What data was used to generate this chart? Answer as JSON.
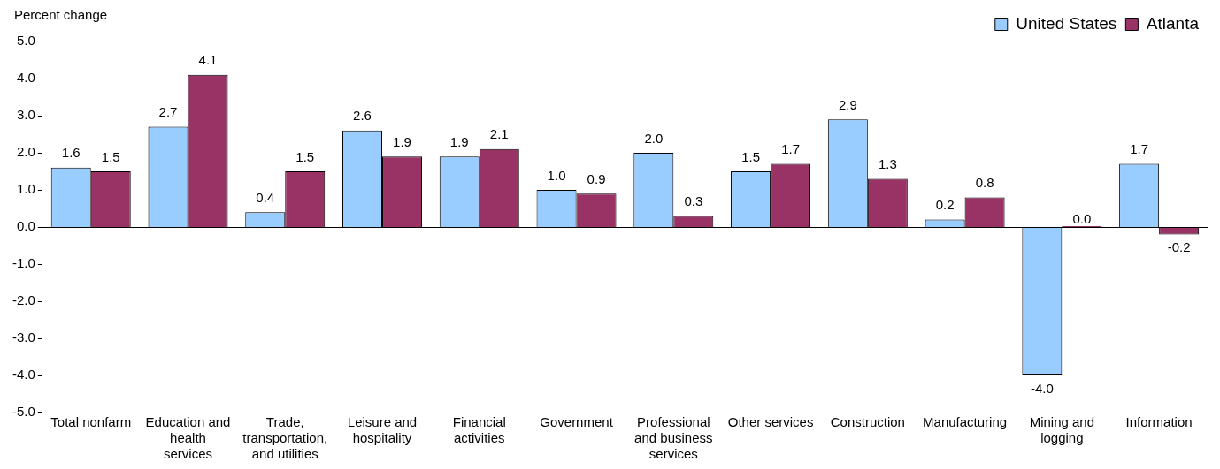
{
  "chart_data": {
    "type": "bar",
    "ylabel": "Percent change",
    "categories": [
      "Total nonfarm",
      "Education and health services",
      "Trade, transportation, and utilities",
      "Leisure and hospitality",
      "Financial activities",
      "Government",
      "Professional and business services",
      "Other services",
      "Construction",
      "Manufacturing",
      "Mining and logging",
      "Information"
    ],
    "series": [
      {
        "name": "United States",
        "color": "#99ccff",
        "values": [
          1.6,
          2.7,
          0.4,
          2.6,
          1.9,
          1.0,
          2.0,
          1.5,
          2.9,
          0.2,
          -4.0,
          1.7
        ],
        "value_labels": [
          "1.6",
          "2.7",
          "0.4",
          "2.6",
          "1.9",
          "1.0",
          "2.0",
          "1.5",
          "2.9",
          "0.2",
          "-4.0",
          "1.7"
        ]
      },
      {
        "name": "Atlanta",
        "color": "#993366",
        "values": [
          1.5,
          4.1,
          1.5,
          1.9,
          2.1,
          0.9,
          0.3,
          1.7,
          1.3,
          0.8,
          0.0,
          -0.2
        ],
        "value_labels": [
          "1.5",
          "4.1",
          "1.5",
          "1.9",
          "2.1",
          "0.9",
          "0.3",
          "1.7",
          "1.3",
          "0.8",
          "0.0",
          "-0.2"
        ]
      }
    ],
    "ylim": [
      -5,
      5
    ],
    "yticks": [
      {
        "value": -5,
        "label": "-5.0"
      },
      {
        "value": -4,
        "label": "-4.0"
      },
      {
        "value": -3,
        "label": "-3.0"
      },
      {
        "value": -2,
        "label": "-2.0"
      },
      {
        "value": -1,
        "label": "-1.0"
      },
      {
        "value": 0,
        "label": "0.0"
      },
      {
        "value": 1,
        "label": "1.0"
      },
      {
        "value": 2,
        "label": "2.0"
      },
      {
        "value": 3,
        "label": "3.0"
      },
      {
        "value": 4,
        "label": "4.0"
      },
      {
        "value": 5,
        "label": "5.0"
      }
    ],
    "ref_lines": [
      {
        "axis": "y",
        "value": 0,
        "color": "#000000"
      }
    ],
    "grid": false,
    "legend": "top right"
  }
}
